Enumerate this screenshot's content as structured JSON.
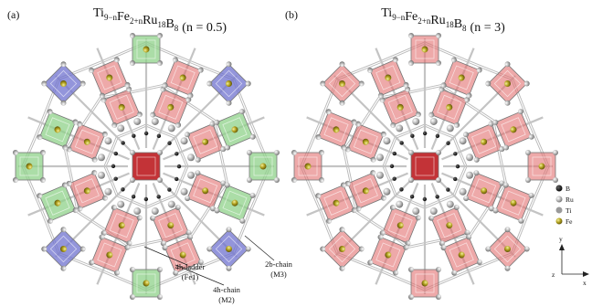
{
  "panels": [
    {
      "label": "(a)",
      "formula": [
        [
          "Ti",
          "9−n"
        ],
        [
          "Fe",
          "2+n"
        ],
        [
          "Ru",
          "18"
        ],
        [
          "B",
          "8"
        ]
      ],
      "suffix": "(n = 0.5)"
    },
    {
      "label": "(b)",
      "formula": [
        [
          "Ti",
          "9−n"
        ],
        [
          "Fe",
          "2+n"
        ],
        [
          "Ru",
          "18"
        ],
        [
          "B",
          "8"
        ]
      ],
      "suffix": "(n = 3)"
    }
  ],
  "annotations": [
    {
      "name": "4h-ladder",
      "site": "(Fe1)"
    },
    {
      "name": "4h-chain",
      "site": "(M2)"
    },
    {
      "name": "2b-chain",
      "site": "(M3)"
    }
  ],
  "legend": [
    "B",
    "Ru",
    "Ti",
    "Fe"
  ],
  "axes": {
    "y": "y",
    "x": "x",
    "z": "z"
  }
}
